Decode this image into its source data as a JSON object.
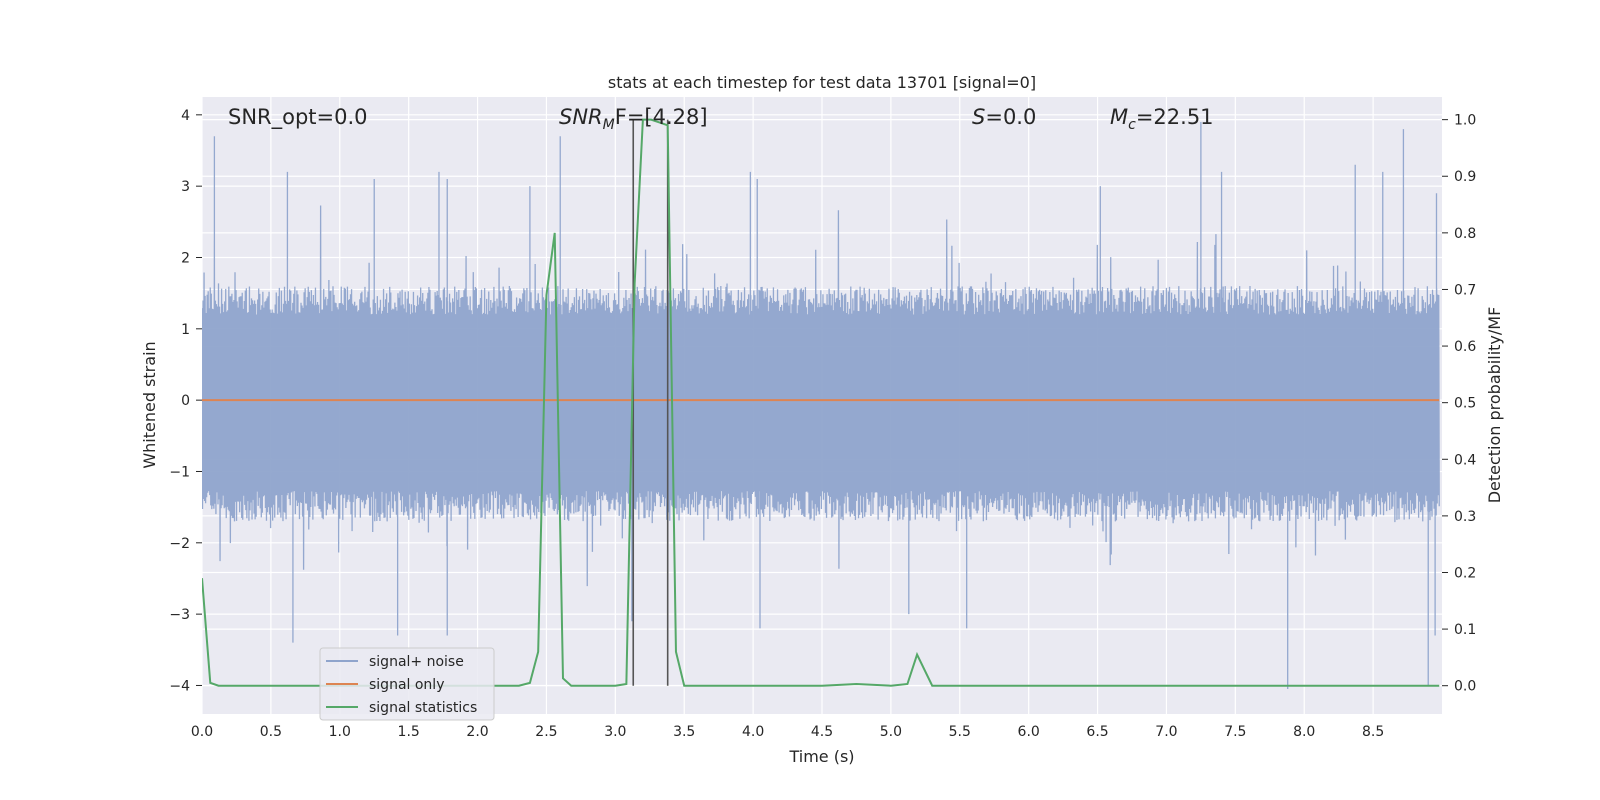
{
  "chart_data": {
    "type": "line",
    "title": "stats at each timestep for test data 13701 [signal=0]",
    "xlabel": "Time (s)",
    "ylabel": "Whitened strain",
    "y2label": "Detection probability/MF",
    "xlim": [
      0.0,
      9.0
    ],
    "ylim": [
      -4.4,
      4.25
    ],
    "y2lim": [
      -0.05,
      1.04
    ],
    "xticks": [
      "0.0",
      "0.5",
      "1.0",
      "1.5",
      "2.0",
      "2.5",
      "3.0",
      "3.5",
      "4.0",
      "4.5",
      "5.0",
      "5.5",
      "6.0",
      "6.5",
      "7.0",
      "7.5",
      "8.0",
      "8.5"
    ],
    "yticks": [
      "4",
      "3",
      "2",
      "1",
      "0",
      "−1",
      "−2",
      "−3",
      "−4"
    ],
    "y2ticks": [
      "1.0",
      "0.9",
      "0.8",
      "0.7",
      "0.6",
      "0.5",
      "0.4",
      "0.3",
      "0.2",
      "0.1",
      "0.0"
    ],
    "grid": true,
    "legend_position": "lower-left",
    "annotations": {
      "snr_opt": "SNR_opt=0.0",
      "snr_mf_base": "SNR",
      "snr_mf_sub": "M",
      "snr_mf_tail": "F=[4.28]",
      "s_label": "S",
      "s_value": "=0.0",
      "mc_base": "M",
      "mc_sub": "c",
      "mc_value": "=22.51"
    },
    "vlines_x": [
      3.13,
      3.38
    ],
    "series": [
      {
        "name": "signal+ noise",
        "color": "#8fa4cc",
        "envelope_upper_typical": 1.6,
        "envelope_lower_typical": -1.7,
        "spikes_up": [
          [
            0.09,
            3.7
          ],
          [
            0.62,
            3.2
          ],
          [
            1.25,
            3.1
          ],
          [
            1.72,
            3.2
          ],
          [
            1.78,
            3.1
          ],
          [
            2.38,
            3.0
          ],
          [
            2.6,
            3.7
          ],
          [
            3.98,
            3.2
          ],
          [
            4.03,
            3.1
          ],
          [
            6.52,
            3.0
          ],
          [
            7.25,
            3.9
          ],
          [
            7.4,
            3.2
          ],
          [
            8.37,
            3.3
          ],
          [
            8.57,
            3.2
          ],
          [
            8.72,
            3.8
          ],
          [
            8.96,
            2.9
          ]
        ],
        "spikes_down": [
          [
            0.66,
            -3.4
          ],
          [
            1.42,
            -3.3
          ],
          [
            1.78,
            -3.3
          ],
          [
            3.12,
            -3.1
          ],
          [
            4.05,
            -3.2
          ],
          [
            5.13,
            -3.0
          ],
          [
            5.55,
            -3.2
          ],
          [
            7.88,
            -4.05
          ],
          [
            8.9,
            -4.0
          ],
          [
            8.95,
            -3.3
          ]
        ]
      },
      {
        "name": "signal only",
        "color": "#dd8452",
        "x": [
          0.0,
          8.98
        ],
        "y": [
          0.0,
          0.0
        ]
      },
      {
        "name": "signal statistics",
        "color": "#55a868",
        "axis": "right",
        "x": [
          0.0,
          0.06,
          0.12,
          0.5,
          1.0,
          1.5,
          2.0,
          2.3,
          2.38,
          2.44,
          2.5,
          2.56,
          2.62,
          2.68,
          2.75,
          3.0,
          3.08,
          3.14,
          3.2,
          3.26,
          3.32,
          3.38,
          3.44,
          3.5,
          4.5,
          4.75,
          5.0,
          5.12,
          5.19,
          5.3,
          5.5,
          6.0,
          7.0,
          8.0,
          8.98
        ],
        "y": [
          0.19,
          0.005,
          0.0,
          0.0,
          0.0,
          0.0,
          0.0,
          0.0,
          0.005,
          0.06,
          0.69,
          0.8,
          0.013,
          0.0,
          0.0,
          0.0,
          0.003,
          0.71,
          1.0,
          1.0,
          0.995,
          0.99,
          0.06,
          0.0,
          0.0,
          0.003,
          0.0,
          0.003,
          0.055,
          0.0,
          0.0,
          0.0,
          0.0,
          0.0,
          0.0
        ]
      }
    ]
  }
}
